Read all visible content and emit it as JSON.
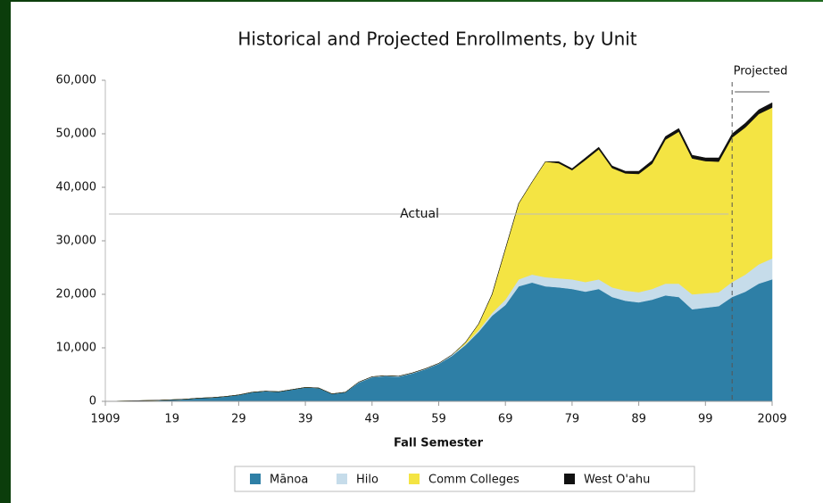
{
  "chart_data": {
    "type": "stacked_area",
    "title": "Historical and Projected Enrollments, by Unit",
    "x_label": "Fall Semester",
    "x": [
      1909,
      1911,
      1913,
      1915,
      1917,
      1919,
      1921,
      1923,
      1925,
      1927,
      1929,
      1931,
      1933,
      1935,
      1937,
      1939,
      1941,
      1943,
      1945,
      1947,
      1949,
      1951,
      1953,
      1955,
      1957,
      1959,
      1961,
      1963,
      1965,
      1967,
      1969,
      1971,
      1973,
      1975,
      1977,
      1979,
      1981,
      1983,
      1985,
      1987,
      1989,
      1991,
      1993,
      1995,
      1997,
      1999,
      2001,
      2003,
      2005,
      2007,
      2009
    ],
    "series": [
      {
        "name": "Mānoa",
        "color": "#2e7fa6",
        "values": [
          0,
          50,
          100,
          150,
          200,
          300,
          400,
          600,
          700,
          900,
          1200,
          1700,
          1900,
          1800,
          2200,
          2600,
          2500,
          1400,
          1700,
          3500,
          4500,
          4700,
          4600,
          5200,
          6000,
          7000,
          8500,
          10500,
          13000,
          16000,
          18000,
          21500,
          22200,
          21500,
          21300,
          21000,
          20500,
          21000,
          19500,
          18800,
          18500,
          19000,
          19800,
          19500,
          17200,
          17500,
          17800,
          19500,
          20500,
          22000,
          22800
        ]
      },
      {
        "name": "Hilo",
        "color": "#c6dcea",
        "values": [
          0,
          0,
          0,
          0,
          0,
          0,
          0,
          0,
          0,
          0,
          0,
          0,
          0,
          0,
          0,
          0,
          0,
          0,
          0,
          100,
          100,
          100,
          100,
          100,
          100,
          100,
          200,
          200,
          300,
          500,
          1000,
          1300,
          1500,
          1700,
          1700,
          1800,
          1800,
          1800,
          1800,
          1900,
          1900,
          2000,
          2200,
          2500,
          2800,
          2700,
          2600,
          2800,
          3200,
          3600,
          3900
        ]
      },
      {
        "name": "Comm Colleges",
        "color": "#f4e443",
        "values": [
          0,
          0,
          0,
          0,
          0,
          0,
          0,
          0,
          0,
          0,
          0,
          0,
          0,
          0,
          0,
          0,
          0,
          0,
          0,
          0,
          0,
          0,
          0,
          0,
          0,
          0,
          0,
          300,
          1200,
          3500,
          9500,
          14200,
          17300,
          21600,
          21500,
          20400,
          22800,
          24300,
          22300,
          21900,
          22100,
          23400,
          26900,
          28400,
          25400,
          24700,
          24400,
          27000,
          27500,
          28100,
          28200
        ]
      },
      {
        "name": "West O'ahu",
        "color": "#111111",
        "values": [
          0,
          0,
          0,
          0,
          0,
          0,
          0,
          0,
          0,
          0,
          0,
          0,
          0,
          0,
          0,
          0,
          0,
          0,
          0,
          0,
          0,
          0,
          0,
          0,
          0,
          0,
          0,
          0,
          0,
          0,
          0,
          0,
          0,
          0,
          300,
          300,
          400,
          400,
          400,
          400,
          500,
          600,
          600,
          600,
          600,
          600,
          700,
          700,
          800,
          800,
          900
        ]
      }
    ],
    "xlim": [
      1909,
      2009
    ],
    "xticks": [
      1909,
      {
        "value": 1919,
        "label": "19"
      },
      {
        "value": 1929,
        "label": "29"
      },
      {
        "value": 1939,
        "label": "39"
      },
      {
        "value": 1949,
        "label": "49"
      },
      {
        "value": 1959,
        "label": "59"
      },
      {
        "value": 1969,
        "label": "69"
      },
      {
        "value": 1979,
        "label": "79"
      },
      {
        "value": 1989,
        "label": "89"
      },
      {
        "value": 1999,
        "label": "99"
      },
      2009
    ],
    "ylim": [
      0,
      60000
    ],
    "yticks": [
      0,
      {
        "value": 10000,
        "label": "10,000"
      },
      {
        "value": 20000,
        "label": "20,000"
      },
      {
        "value": 30000,
        "label": "30,000"
      },
      {
        "value": 40000,
        "label": "40,000"
      },
      {
        "value": 50000,
        "label": "50,000"
      },
      {
        "value": 60000,
        "label": "60,000"
      }
    ],
    "grid": false,
    "projection_start": 2003,
    "annotations": [
      {
        "text": "Actual"
      },
      {
        "text": "Projected"
      }
    ],
    "legend": "bottom"
  }
}
